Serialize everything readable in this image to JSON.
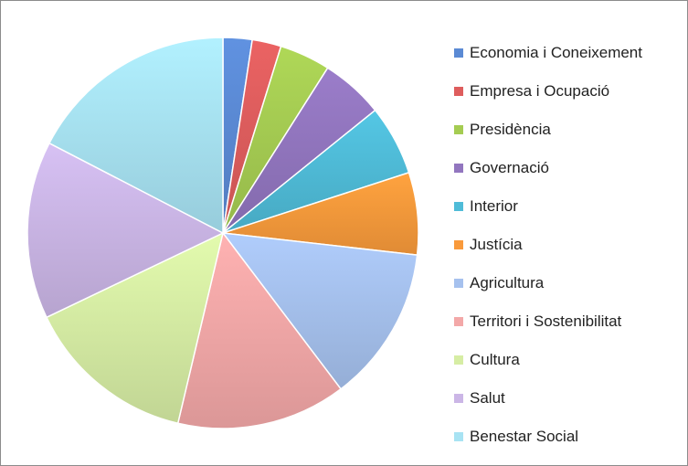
{
  "chart_data": {
    "type": "pie",
    "title": "",
    "legend_position": "right",
    "start_angle": "top",
    "direction": "clockwise",
    "slices": [
      {
        "label": "Economia i Coneixement",
        "value": 2.4,
        "color": "#5b8ad4"
      },
      {
        "label": "Empresa i Ocupació",
        "value": 2.4,
        "color": "#de5d5d"
      },
      {
        "label": "Presidència",
        "value": 4.2,
        "color": "#a5cc52"
      },
      {
        "label": "Governació",
        "value": 5.2,
        "color": "#9276bf"
      },
      {
        "label": "Interior",
        "value": 5.8,
        "color": "#4fbcd8"
      },
      {
        "label": "Justícia",
        "value": 6.8,
        "color": "#f99a3b"
      },
      {
        "label": "Agricultura",
        "value": 12.9,
        "color": "#a6c1ee"
      },
      {
        "label": "Territori i Sostenibilitat",
        "value": 14.0,
        "color": "#f3a8a8"
      },
      {
        "label": "Cultura",
        "value": 14.2,
        "color": "#d6eda4"
      },
      {
        "label": "Salut",
        "value": 14.7,
        "color": "#cbb6e6"
      },
      {
        "label": "Benestar Social",
        "value": 17.4,
        "color": "#a8e3f3"
      }
    ]
  }
}
